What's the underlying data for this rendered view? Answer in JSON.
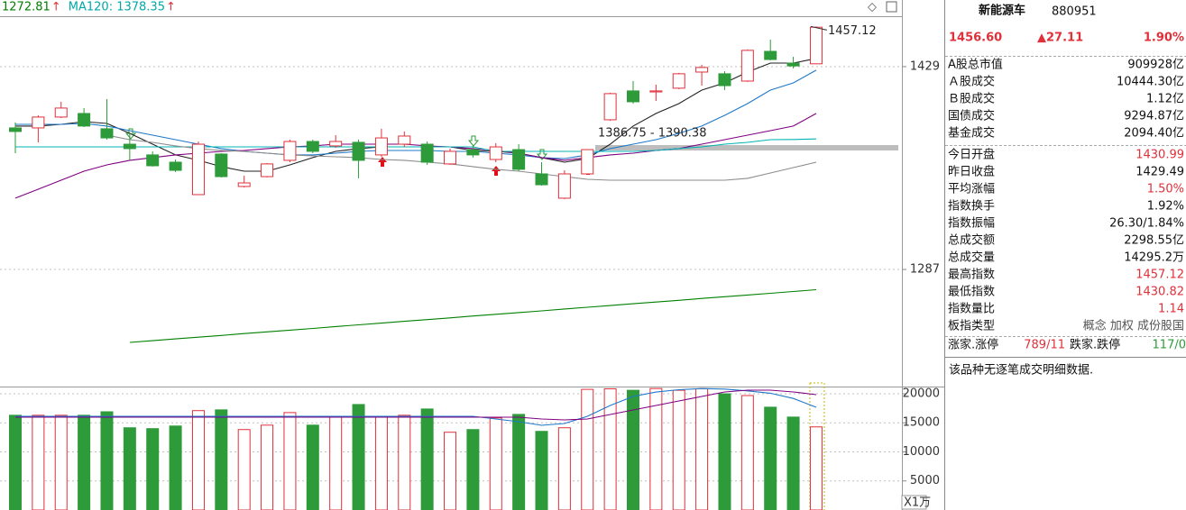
{
  "chart_data": [
    {
      "type": "candlestick",
      "ma_legend": [
        {
          "label": "1272.81",
          "arrow": "↑",
          "color": "#008000"
        },
        {
          "label": "MA120: 1378.35",
          "arrow": "↑",
          "color": "#00a8a8"
        }
      ],
      "open": [
        1386.1,
        1386.1,
        1393.7,
        1396.2,
        1385.5,
        1374.7,
        1367.2,
        1362.1,
        1339.4,
        1367.8,
        1345.1,
        1352.0,
        1363.4,
        1376.6,
        1373.5,
        1376.0,
        1367.2,
        1374.7,
        1374.7,
        1360.9,
        1370.9,
        1364.0,
        1370.9,
        1353.9,
        1336.9,
        1353.9,
        1391.8,
        1412.0,
        1411.3,
        1413.9,
        1425.2,
        1424.0,
        1418.9,
        1439.7,
        1431.5,
        1430.99
      ],
      "high": [
        1389.9,
        1394.9,
        1404.4,
        1400.0,
        1406.3,
        1382.3,
        1369.7,
        1364.0,
        1376.6,
        1368.4,
        1352.6,
        1361.5,
        1377.9,
        1377.9,
        1381.0,
        1377.9,
        1385.5,
        1383.6,
        1376.6,
        1371.6,
        1373.5,
        1375.4,
        1374.7,
        1362.1,
        1356.4,
        1370.9,
        1410.7,
        1418.9,
        1416.4,
        1424.6,
        1430.3,
        1425.8,
        1441.0,
        1447.9,
        1435.9,
        1457.12
      ],
      "low": [
        1368.4,
        1376.0,
        1393.0,
        1386.7,
        1377.9,
        1363.4,
        1359.0,
        1355.2,
        1339.4,
        1351.4,
        1344.4,
        1351.4,
        1362.1,
        1368.4,
        1372.2,
        1350.8,
        1365.9,
        1372.8,
        1360.2,
        1360.2,
        1365.3,
        1362.1,
        1355.8,
        1345.7,
        1336.2,
        1353.3,
        1391.1,
        1403.1,
        1405.0,
        1413.2,
        1415.7,
        1412.6,
        1418.3,
        1433.4,
        1427.7,
        1430.82
      ],
      "close": [
        1383.6,
        1393.7,
        1400.0,
        1387.4,
        1379.1,
        1371.6,
        1359.6,
        1356.4,
        1374.7,
        1352.0,
        1347.6,
        1360.9,
        1376.6,
        1369.7,
        1376.6,
        1363.4,
        1379.1,
        1380.4,
        1362.1,
        1369.7,
        1367.2,
        1372.8,
        1357.1,
        1346.3,
        1353.9,
        1370.9,
        1410.1,
        1404.4,
        1412.0,
        1424.0,
        1428.4,
        1415.7,
        1440.4,
        1434.0,
        1429.49,
        1456.6
      ],
      "up_color": "#e0303a",
      "down_color": "#2e9b3a",
      "series": [
        {
          "color": "#222222",
          "values": [
            1387.4,
            1387.4,
            1388.6,
            1390.5,
            1389.2,
            1382.3,
            1374.7,
            1367.2,
            1363.4,
            1359.0,
            1355.8,
            1355.8,
            1360.2,
            1365.3,
            1369.7,
            1371.6,
            1372.8,
            1372.8,
            1372.8,
            1372.8,
            1370.3,
            1369.7,
            1368.4,
            1365.3,
            1362.1,
            1364.6,
            1374.7,
            1387.4,
            1396.2,
            1403.1,
            1412.6,
            1417.6,
            1425.2,
            1431.5,
            1431.5,
            1434.7
          ]
        },
        {
          "color": "#1f78c8",
          "values": [
            1388.6,
            1388.6,
            1388.6,
            1389.2,
            1387.4,
            1384.2,
            1381.0,
            1377.9,
            1374.7,
            1371.6,
            1369.7,
            1368.4,
            1367.2,
            1367.2,
            1368.4,
            1369.7,
            1370.3,
            1370.3,
            1370.3,
            1369.7,
            1369.7,
            1368.4,
            1367.2,
            1365.3,
            1364.6,
            1367.2,
            1371.6,
            1374.7,
            1377.9,
            1382.3,
            1387.4,
            1394.9,
            1403.1,
            1412.6,
            1417.6,
            1426.5
          ]
        },
        {
          "color": "#800080",
          "values": [
            1336.9,
            1343.2,
            1349.5,
            1355.8,
            1360.2,
            1363.4,
            1365.3,
            1367.2,
            1368.4,
            1369.7,
            1370.3,
            1371.6,
            1372.8,
            1373.5,
            1374.7,
            1374.7,
            1374.7,
            1374.7,
            1373.5,
            1372.8,
            1371.6,
            1370.3,
            1368.4,
            1365.3,
            1363.4,
            1365.3,
            1367.2,
            1368.4,
            1370.3,
            1371.6,
            1374.7,
            1377.9,
            1381.0,
            1384.2,
            1387.4,
            1396.2
          ]
        },
        {
          "color": "#00b4b4",
          "values": [
            1372.8,
            1372.8,
            1372.8,
            1372.8,
            1372.8,
            1372.8,
            1372.8,
            1372.8,
            1372.8,
            1372.8,
            1372.8,
            1372.8,
            1372.8,
            1372.8,
            1372.8,
            1372.8,
            1372.8,
            1372.8,
            1372.8,
            1372.8,
            1372.8,
            1369.7,
            1369.7,
            1369.7,
            1369.7,
            1369.7,
            1369.7,
            1369.7,
            1370.3,
            1371.6,
            1372.8,
            1374.7,
            1376.0,
            1377.9,
            1378.0,
            1378.35
          ]
        },
        {
          "color": "#8c8c8c",
          "values": [
            null,
            null,
            null,
            null,
            1381.0,
            1377.9,
            1376.0,
            1373.5,
            1371.6,
            1370.3,
            1369.7,
            1368.4,
            1367.2,
            1366.5,
            1365.9,
            1365.3,
            1364.0,
            1363.4,
            1362.1,
            1360.9,
            1359.0,
            1357.1,
            1355.8,
            1353.9,
            1352.0,
            1350.1,
            1349.5,
            1349.5,
            1349.5,
            1349.5,
            1349.5,
            1349.5,
            1350.8,
            1354.5,
            1358.3,
            1362.1
          ]
        },
        {
          "color": "#008000",
          "values": [
            null,
            null,
            null,
            null,
            null,
            1235.9,
            1237.1,
            1238.4,
            1239.6,
            1240.8,
            1242.1,
            1243.3,
            1244.5,
            1245.7,
            1247.0,
            1248.2,
            1249.4,
            1250.7,
            1251.9,
            1253.1,
            1254.4,
            1255.6,
            1256.8,
            1258.0,
            1259.3,
            1260.5,
            1261.7,
            1263.0,
            1264.2,
            1265.4,
            1266.7,
            1267.9,
            1269.1,
            1270.3,
            1271.6,
            1272.81
          ]
        }
      ],
      "ylim": [
        1217,
        1464.3
      ],
      "yticks": [
        1287,
        1429
      ],
      "high_annotation": "1457.12",
      "gap_annotation": "1386.75 - 1390.38"
    },
    {
      "type": "bar",
      "values": [
        16300,
        16300,
        16300,
        16300,
        16900,
        14150,
        14000,
        14450,
        17100,
        17230,
        13840,
        14600,
        16760,
        14600,
        15990,
        18150,
        15990,
        16300,
        17380,
        13380,
        13840,
        15840,
        16450,
        13530,
        14150,
        20760,
        20850,
        20600,
        20900,
        20600,
        20850,
        20000,
        19690,
        17690,
        15990,
        14300
      ],
      "series": [
        {
          "color": "#1f78c8",
          "values": [
            16120,
            16120,
            16120,
            16120,
            16120,
            16120,
            16120,
            16120,
            16120,
            16120,
            16120,
            16120,
            16120,
            16120,
            16120,
            16120,
            16120,
            16120,
            16120,
            16120,
            16120,
            15655,
            15190,
            14570,
            14880,
            16120,
            17980,
            19530,
            20300,
            20700,
            20900,
            20800,
            20500,
            20100,
            19200,
            17670
          ]
        },
        {
          "color": "#800080",
          "values": [
            15965,
            15965,
            15965,
            15965,
            15965,
            15965,
            15965,
            15965,
            15965,
            15965,
            15965,
            15965,
            15965,
            15965,
            15965,
            15965,
            15965,
            15965,
            15965,
            15965,
            15965,
            15965,
            15965,
            15655,
            15500,
            15655,
            16430,
            17205,
            17980,
            18755,
            19530,
            20305,
            20615,
            20615,
            20305,
            19840
          ]
        }
      ],
      "ylim": [
        0,
        21085
      ],
      "yticks": [
        5000,
        10000,
        15000,
        20000
      ],
      "unit_label": "X1万"
    }
  ],
  "panel": {
    "name": "新能源车",
    "code": "880951",
    "price": "1456.60",
    "change": "▲27.11",
    "change_pct": "1.90%",
    "rows1": [
      {
        "label": "A股总市值",
        "value": "909928亿"
      },
      {
        "label": "Ａ股成交",
        "value": "10444.30亿"
      },
      {
        "label": "Ｂ股成交",
        "value": "1.12亿"
      },
      {
        "label": "国债成交",
        "value": "9294.87亿"
      },
      {
        "label": "基金成交",
        "value": "2094.40亿"
      }
    ],
    "rows2": [
      {
        "label": "今日开盘",
        "value": "1430.99",
        "color": "#e0303a"
      },
      {
        "label": "昨日收盘",
        "value": "1429.49"
      },
      {
        "label": "平均涨幅",
        "value": "1.50%",
        "color": "#e0303a"
      },
      {
        "label": "指数换手",
        "value": "1.92%"
      },
      {
        "label": "指数振幅",
        "value": "26.30/1.84%"
      },
      {
        "label": "总成交额",
        "value": "2298.55亿"
      },
      {
        "label": "总成交量",
        "value": "14295.2万"
      },
      {
        "label": "最高指数",
        "value": "1457.12",
        "color": "#e0303a"
      },
      {
        "label": "最低指数",
        "value": "1430.82",
        "color": "#e0303a"
      },
      {
        "label": "指数量比",
        "value": "1.14",
        "color": "#e0303a"
      },
      {
        "label": "板指类型",
        "value": "概念 加权 成份股国",
        "color": "#555555"
      }
    ],
    "breadth": {
      "up_label": "涨家.涨停",
      "up_value": "789/11",
      "down_label": "跌家.跌停",
      "down_value": "117/0"
    },
    "note": "该品种无逐笔成交明细数据."
  }
}
